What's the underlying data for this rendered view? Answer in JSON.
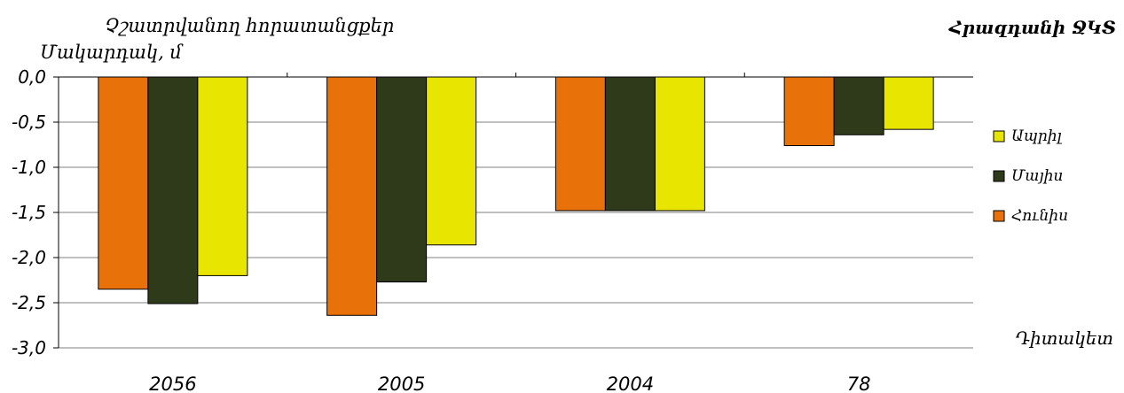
{
  "chart_data": {
    "type": "bar",
    "title_line1": "Չշատրվանող հորատանցքեր",
    "title_right": "Հրազդանի ՋԿՏ",
    "ylabel": "Մակարդակ, մ",
    "xlabel": "Դիտակետ",
    "categories": [
      "2056",
      "2005",
      "2004",
      "78"
    ],
    "yticks": [
      "0,0",
      "-0,5",
      "-1,0",
      "-1,5",
      "-2,0",
      "-2,5",
      "-3,0"
    ],
    "ylim": [
      -3.0,
      0.0
    ],
    "grid": true,
    "legend_position": "right",
    "series": [
      {
        "name": "Հունիս",
        "color": "#E8710A",
        "values": [
          -2.35,
          -2.64,
          -1.48,
          -0.76
        ]
      },
      {
        "name": "Մայիս",
        "color": "#2F3A1A",
        "values": [
          -2.51,
          -2.27,
          -1.48,
          -0.64
        ]
      },
      {
        "name": "Ապրիլ",
        "color": "#E8E600",
        "values": [
          -2.2,
          -1.86,
          -1.48,
          -0.58
        ]
      }
    ],
    "legend_order": [
      "Ապրիլ",
      "Մայիս",
      "Հունիս"
    ]
  }
}
